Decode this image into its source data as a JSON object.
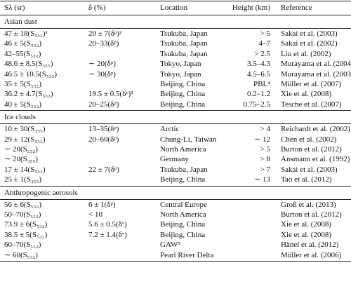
{
  "table": {
    "header": [
      "Sλ (sr)",
      "δ (%)",
      "Location",
      "Height (km)",
      "Reference"
    ],
    "sections": [
      {
        "title": "Asian dust",
        "rows": [
          [
            "47 ± 18(S₅₃₂)¹",
            "20 ± 7(δᵖ)²",
            "Tsukuba, Japan",
            "> 5",
            "Sakai et al. (2003)"
          ],
          [
            "46 ± 5(S₅₃₂)",
            "20–33(δᵖ)",
            "Tsukuba, Japan",
            "4–7",
            "Sakai et al. (2002)"
          ],
          [
            "42–55(S₅₃₂)",
            null,
            "Tsukuba, Japan",
            "> 2.5",
            "Liu et al. (2002)"
          ],
          [
            "48.6 ± 8.5(S₃₅₅)",
            "∼ 20(δᵖ)",
            "Tokyo, Japan",
            "3.5–4.3",
            "Murayama et al. (2004)"
          ],
          [
            "46.5 ± 10.5(S₅₃₂)",
            "∼ 30(δᵖ)",
            "Tokyo, Japan",
            "4.5–6.5",
            "Murayama et al. (2003)"
          ],
          [
            "35 ± 5(S₅₃₂)",
            null,
            "Beijing, China",
            "PBL⁴",
            "Müller et al. (2007)"
          ],
          [
            "36.2 ± 4.7(S₅₃₂)",
            "19.5 ± 0.5(δᵛ)³",
            "Beijing, China",
            "0.2–1.2",
            "Xie et al. (2008)"
          ],
          [
            "40 ± 5(S₅₃₂)",
            "20–25(δᵖ)",
            "Beijing, China",
            "0.75–2.5",
            "Tesche et al. (2007)"
          ]
        ]
      },
      {
        "title": "Ice clouds",
        "rows": [
          [
            "10 ± 30(S₃₅₅)",
            "13–35(δᵖ)",
            "Arctic",
            "> 4",
            "Reichardt et al. (2002)"
          ],
          [
            "29 ± 12(S₅₃₂)",
            "20–60(δᵖ)",
            "Chung-Li, Taiwan",
            "∼ 12",
            "Chen et al. (2002)"
          ],
          [
            "∼ 20(S₅₃₂)",
            null,
            "North America",
            "> 5",
            "Burton et al. (2012)"
          ],
          [
            "∼ 20(S₃₅₅)",
            null,
            "Germany",
            "> 8",
            "Ansmann et al. (1992)"
          ],
          [
            "17 ± 14(S₅₃₂)",
            "22 ± 7(δᵖ)",
            "Tsukuba, Japan",
            "> 7",
            "Sakai et al. (2003)"
          ],
          [
            "25 ± 1(S₃₅₅)",
            null,
            "Beijing, China",
            "∼ 13",
            "Tao et al. (2012)"
          ]
        ]
      },
      {
        "title": "Anthropogenic aerosols",
        "rows": [
          [
            "56 ± 6(S₅₃₂)",
            "6 ± 1(δᵖ)",
            "Central Europe",
            null,
            "Groß et al. (2013)"
          ],
          [
            "50–70(S₅₃₂)",
            "< 10",
            "North America",
            null,
            "Burton et al. (2012)"
          ],
          [
            "73.9 ± 6(S₅₃₂)",
            "5.6 ± 0.5(δᵛ)",
            "Beijing, China",
            null,
            "Xie et al. (2008)"
          ],
          [
            "38.5 ± 5(S₅₃₂)",
            "7.2 ± 1.4(δᵛ)",
            "Beijing, China",
            null,
            "Xie et al. (2008)"
          ],
          [
            "60–70(S₅₃₂)",
            null,
            "GAW⁵",
            null,
            "Hänel et al. (2012)"
          ],
          [
            "∼ 60(S₅₃₂)",
            null,
            "Pearl River Delta",
            null,
            "Müller et al. (2006)"
          ]
        ]
      }
    ]
  }
}
